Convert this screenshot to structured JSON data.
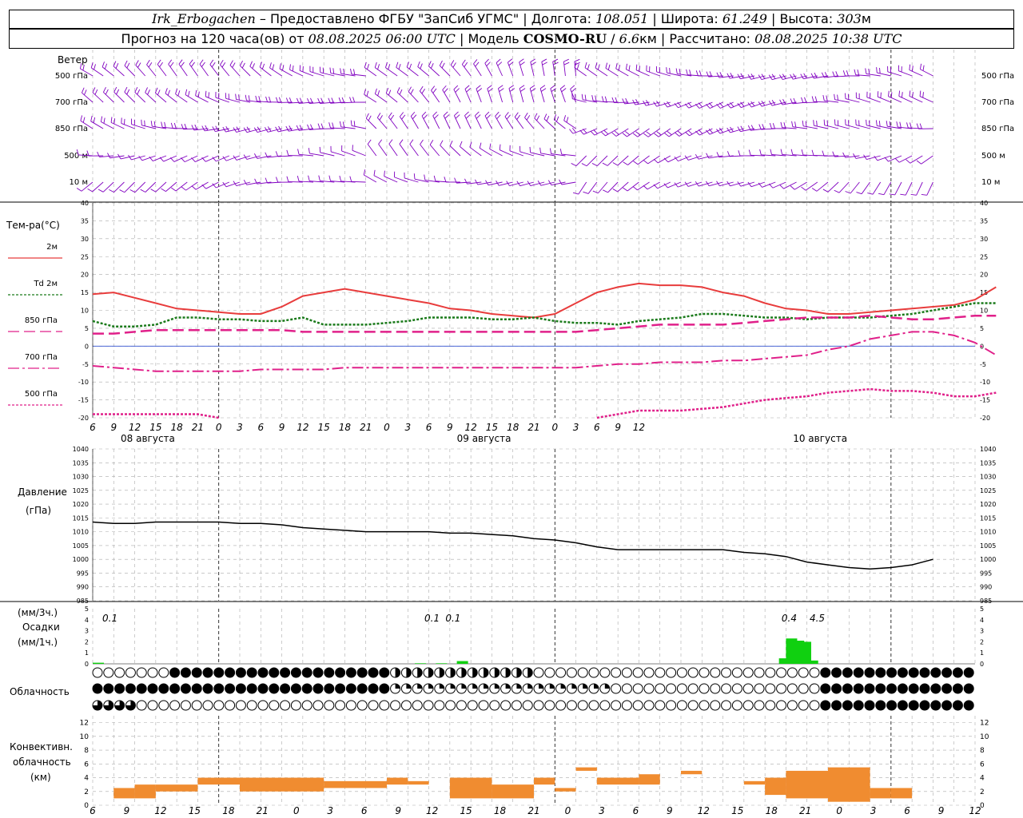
{
  "header": {
    "station": "Irk_Erbogachen",
    "provider": "– Предоставлено ФГБУ \"ЗапСиб УГМС\"",
    "lon_label": "Долгота:",
    "lon": "108.051",
    "lat_label": "Широта:",
    "lat": "61.249",
    "alt_label": "Высота:",
    "alt": "303",
    "alt_unit": "м",
    "forecast_label": "Прогноз на 120 часа(ов) от",
    "forecast_start": "08.08.2025 06:00 UTC",
    "model_label": "Модель",
    "model": "COSMO-RU",
    "resolution": "6.6",
    "res_unit": "км",
    "computed_label": "Рассчитано:",
    "computed": "08.08.2025 10:38 UTC"
  },
  "wind_panel": {
    "title": "Ветер",
    "levels": [
      "500 гПа",
      "700 гПа",
      "850 гПа",
      "500 м",
      "10 м"
    ],
    "color": "#8000c0"
  },
  "x_axis": {
    "hour_ticks": [
      "6",
      "9",
      "12",
      "15",
      "18",
      "21",
      "0",
      "3",
      "6",
      "9",
      "12",
      "15",
      "18",
      "21",
      "0",
      "3",
      "6",
      "9",
      "12",
      "15",
      "18",
      "21",
      "0",
      "3",
      "6",
      "9",
      "12"
    ],
    "dates": [
      "08 августа",
      "09 августа",
      "10 августа"
    ]
  },
  "temperature_panel": {
    "title": "Тем-ра(°C)",
    "legend": [
      {
        "label": "2м",
        "color": "#e83c3c"
      },
      {
        "label": "Td 2м",
        "color": "#1a7a1a"
      },
      {
        "label": "850 гПа",
        "color": "#e0208a"
      },
      {
        "label": "700 гПа",
        "color": "#e0208a"
      },
      {
        "label": "500 гПа",
        "color": "#e0208a"
      }
    ],
    "y_ticks": [
      "40",
      "35",
      "30",
      "25",
      "20",
      "15",
      "10",
      "5",
      "0",
      "-5",
      "-10",
      "-15",
      "-20"
    ]
  },
  "pressure_panel": {
    "title": "Давление",
    "unit": "(гПа)",
    "y_ticks": [
      "1040",
      "1035",
      "1030",
      "1025",
      "1020",
      "1015",
      "1010",
      "1005",
      "1000",
      "995",
      "990",
      "985"
    ]
  },
  "precip_panel": {
    "unit1": "(мм/3ч.)",
    "title": "Осадки",
    "unit2": "(мм/1ч.)",
    "y_ticks": [
      "5",
      "4",
      "3",
      "2",
      "1",
      "0"
    ],
    "annotations": [
      "0.1",
      "0.1",
      "0.1",
      "0.4",
      "4.5"
    ]
  },
  "cloud_panel": {
    "title": "Облачность"
  },
  "convective_panel": {
    "title1": "Конвективн.",
    "title2": "облачность",
    "unit": "(км)",
    "y_ticks": [
      "12",
      "10",
      "8",
      "6",
      "4",
      "2",
      "0"
    ],
    "color": "#f08c30"
  },
  "chart_data": [
    {
      "type": "line",
      "name": "temperature",
      "x_hours": [
        0,
        3,
        6,
        9,
        12,
        15,
        18,
        21,
        24,
        27,
        30,
        33,
        36,
        39,
        42,
        45,
        48,
        51,
        54,
        57,
        60,
        63,
        66,
        69,
        72,
        75,
        78,
        81,
        84,
        87,
        90,
        93,
        96,
        99,
        102,
        105,
        108,
        111,
        114,
        117,
        120,
        123,
        126,
        129
      ],
      "ylim": [
        -20,
        40
      ],
      "series": [
        {
          "name": "2м",
          "values": [
            14.5,
            15,
            13.5,
            12,
            10.5,
            10,
            9.5,
            9,
            9,
            11,
            14,
            15,
            16,
            15,
            14,
            13,
            12,
            10.5,
            10,
            9,
            8.5,
            8,
            9,
            12,
            15,
            16.5,
            17.5,
            17,
            17,
            16.5,
            15,
            14,
            12,
            10.5,
            10,
            9,
            9,
            9.5,
            10,
            10.5,
            11,
            11.5,
            13,
            16.5
          ]
        },
        {
          "name": "Td 2м",
          "values": [
            7,
            5.5,
            5.5,
            6,
            8,
            8,
            7.5,
            7.5,
            7,
            7,
            8,
            6,
            6,
            6,
            6.5,
            7,
            8,
            8,
            8,
            7.5,
            7.5,
            8,
            7,
            6.5,
            6.5,
            6,
            7,
            7.5,
            8,
            9,
            9,
            8.5,
            8,
            8,
            7.5,
            8,
            8,
            8,
            8.5,
            9,
            10,
            11,
            12,
            12
          ]
        },
        {
          "name": "850 гПа",
          "values": [
            3.5,
            3.5,
            4,
            4.5,
            4.5,
            4.5,
            4.5,
            4.5,
            4.5,
            4.5,
            4,
            4,
            4,
            4,
            4,
            4,
            4,
            4,
            4,
            4,
            4,
            4,
            4,
            4,
            4.5,
            5,
            5.5,
            6,
            6,
            6,
            6,
            6.5,
            7,
            7.5,
            8,
            8,
            8,
            8.5,
            8,
            7.5,
            7.5,
            8,
            8.5,
            8.5
          ]
        },
        {
          "name": "700 гПа",
          "values": [
            -5.5,
            -6,
            -6.5,
            -7,
            -7,
            -7,
            -7,
            -7,
            -6.5,
            -6.5,
            -6.5,
            -6.5,
            -6,
            -6,
            -6,
            -6,
            -6,
            -6,
            -6,
            -6,
            -6,
            -6,
            -6,
            -6,
            -5.5,
            -5,
            -5,
            -4.5,
            -4.5,
            -4.5,
            -4,
            -4,
            -3.5,
            -3,
            -2.5,
            -1,
            0,
            2,
            3,
            4,
            4,
            3,
            1,
            -2.5
          ]
        },
        {
          "name": "500 гПа",
          "values": [
            -19,
            -19,
            -19,
            -19,
            -19,
            -19,
            -20,
            -21,
            null,
            null,
            null,
            null,
            null,
            null,
            null,
            null,
            null,
            null,
            null,
            null,
            null,
            null,
            null,
            null,
            -20,
            -19,
            -18,
            -18,
            -18,
            -17.5,
            -17,
            -16,
            -15,
            -14.5,
            -14,
            -13,
            -12.5,
            -12,
            -12.5,
            -12.5,
            -13,
            -14,
            -14,
            -13
          ]
        }
      ]
    },
    {
      "type": "line",
      "name": "pressure",
      "x_hours": [
        0,
        3,
        6,
        9,
        12,
        15,
        18,
        21,
        24,
        27,
        30,
        33,
        36,
        39,
        42,
        45,
        48,
        51,
        54,
        57,
        60,
        63,
        66,
        69,
        72,
        75,
        78,
        81,
        84,
        87,
        90,
        93,
        96,
        99,
        102,
        105,
        108,
        111,
        114,
        117,
        120
      ],
      "ylim": [
        985,
        1040
      ],
      "values": [
        1013.5,
        1013,
        1013,
        1013.5,
        1013.5,
        1013.5,
        1013.5,
        1013,
        1013,
        1012.5,
        1011.5,
        1011,
        1010.5,
        1010,
        1010,
        1010,
        1010,
        1009.5,
        1009.5,
        1009,
        1008.5,
        1007.5,
        1007,
        1006,
        1004.5,
        1003.5,
        1003.5,
        1003.5,
        1003.5,
        1003.5,
        1003.5,
        1002.5,
        1002,
        1001,
        999,
        998,
        997,
        996.5,
        997,
        998,
        1000
      ]
    },
    {
      "type": "bar",
      "name": "precipitation_1h",
      "ylim": [
        0,
        5
      ],
      "x_hours": [
        0,
        46,
        49,
        52,
        98,
        99,
        100,
        101,
        102
      ],
      "values": [
        0.1,
        0.05,
        0.05,
        0.25,
        0.5,
        2.3,
        2.1,
        2.0,
        0.3
      ]
    },
    {
      "type": "bar",
      "name": "convective_cloud_km",
      "ylim": [
        0,
        13
      ],
      "bars": [
        {
          "x0": 0,
          "x1": 3,
          "bottom": 1,
          "top": 2.5
        },
        {
          "x0": 3,
          "x1": 6,
          "bottom": 1,
          "top": 3
        },
        {
          "x0": 6,
          "x1": 12,
          "bottom": 2,
          "top": 3
        },
        {
          "x0": 12,
          "x1": 18,
          "bottom": 3,
          "top": 4
        },
        {
          "x0": 18,
          "x1": 30,
          "bottom": 2,
          "top": 4
        },
        {
          "x0": 30,
          "x1": 39,
          "bottom": 2.5,
          "top": 3.5
        },
        {
          "x0": 39,
          "x1": 42,
          "bottom": 3,
          "top": 4
        },
        {
          "x0": 42,
          "x1": 45,
          "bottom": 3,
          "top": 3.5
        },
        {
          "x0": 48,
          "x1": 54,
          "bottom": 1,
          "top": 4
        },
        {
          "x0": 54,
          "x1": 60,
          "bottom": 1,
          "top": 3
        },
        {
          "x0": 60,
          "x1": 63,
          "bottom": 3,
          "top": 4
        },
        {
          "x0": 63,
          "x1": 66,
          "bottom": 2,
          "top": 2.5
        },
        {
          "x0": 66,
          "x1": 69,
          "bottom": 5,
          "top": 5.5
        },
        {
          "x0": 69,
          "x1": 75,
          "bottom": 3,
          "top": 4
        },
        {
          "x0": 75,
          "x1": 78,
          "bottom": 3,
          "top": 4.5
        },
        {
          "x0": 81,
          "x1": 84,
          "bottom": 4.5,
          "top": 5
        },
        {
          "x0": 90,
          "x1": 93,
          "bottom": 3,
          "top": 3.5
        },
        {
          "x0": 93,
          "x1": 96,
          "bottom": 1.5,
          "top": 4
        },
        {
          "x0": 96,
          "x1": 102,
          "bottom": 1,
          "top": 5
        },
        {
          "x0": 102,
          "x1": 108,
          "bottom": 0.5,
          "top": 5.5
        },
        {
          "x0": 108,
          "x1": 111,
          "bottom": 1,
          "top": 2.5
        },
        {
          "x0": 111,
          "x1": 114,
          "bottom": 1,
          "top": 2.5
        }
      ]
    }
  ]
}
